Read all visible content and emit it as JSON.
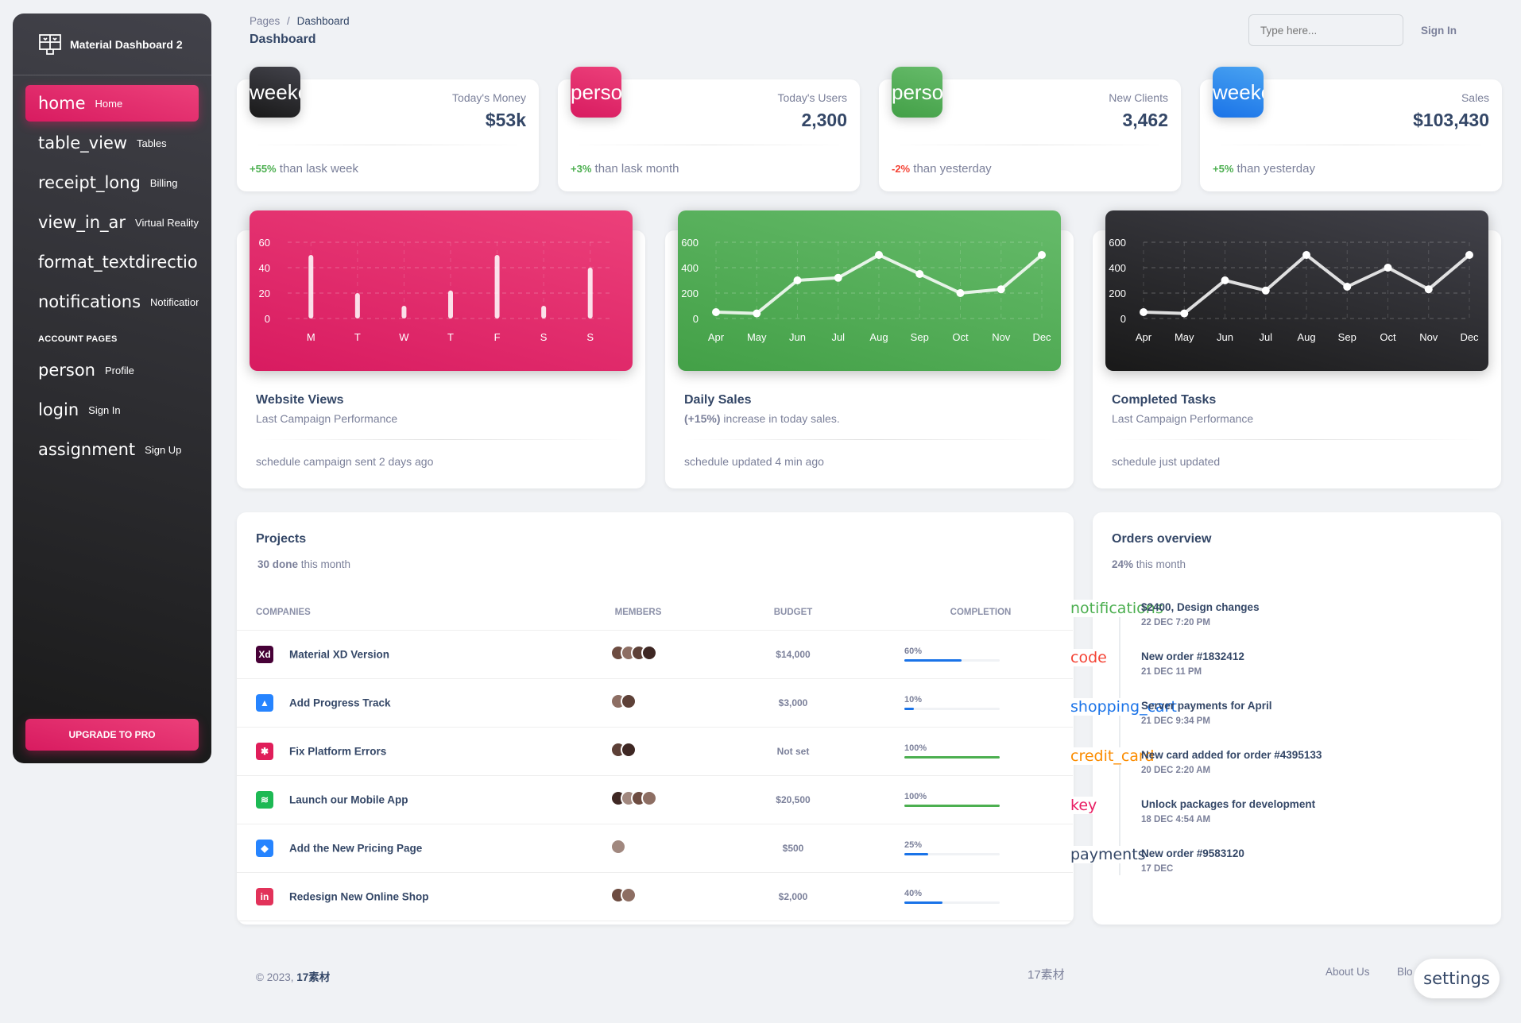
{
  "sidebar": {
    "brand": "Material Dashboard 2",
    "items": [
      {
        "icon": "home",
        "label": "Home"
      },
      {
        "icon": "table_view",
        "label": "Tables"
      },
      {
        "icon": "receipt_long",
        "label": "Billing"
      },
      {
        "icon": "view_in_ar",
        "label": "Virtual Reality"
      },
      {
        "icon": "format_textdirection_r_",
        "label": ""
      },
      {
        "icon": "notifications",
        "label": "Notifications"
      }
    ],
    "section": "ACCOUNT PAGES",
    "account_items": [
      {
        "icon": "person",
        "label": "Profile"
      },
      {
        "icon": "login",
        "label": "Sign In"
      },
      {
        "icon": "assignment",
        "label": "Sign Up"
      }
    ],
    "upgrade": "UPGRADE TO PRO"
  },
  "header": {
    "crumb_root": "Pages",
    "crumb_sep": "/",
    "crumb_current": "Dashboard",
    "title": "Dashboard",
    "search_placeholder": "Type here...",
    "signin": "Sign In"
  },
  "stats": [
    {
      "icon": "weekend",
      "label": "Today's Money",
      "value": "$53k",
      "change": "+55%",
      "change_text": " than lask week",
      "color": "#4caf50"
    },
    {
      "icon": "person",
      "label": "Today's Users",
      "value": "2,300",
      "change": "+3%",
      "change_text": " than lask month",
      "color": "#4caf50"
    },
    {
      "icon": "person",
      "label": "New Clients",
      "value": "3,462",
      "change": "-2%",
      "change_text": " than yesterday",
      "color": "#f44335"
    },
    {
      "icon": "weekend",
      "label": "Sales",
      "value": "$103,430",
      "change": "+5%",
      "change_text": " than yesterday",
      "color": "#4caf50"
    }
  ],
  "charts": [
    {
      "title": "Website Views",
      "subtitle": "Last Campaign Performance",
      "footer_icon": "schedule",
      "footer": " campaign sent 2 days ago",
      "chart_data": {
        "type": "bar",
        "categories": [
          "M",
          "T",
          "W",
          "T",
          "F",
          "S",
          "S"
        ],
        "values": [
          50,
          20,
          10,
          22,
          50,
          10,
          40
        ],
        "yticks": [
          0,
          20,
          40,
          60
        ],
        "ylim": [
          0,
          60
        ],
        "grid": true
      }
    },
    {
      "title": "Daily Sales",
      "subtitle_bold": "(+15%)",
      "subtitle": " increase in today sales.",
      "footer_icon": "schedule",
      "footer": " updated 4 min ago",
      "chart_data": {
        "type": "line",
        "categories": [
          "Apr",
          "May",
          "Jun",
          "Jul",
          "Aug",
          "Sep",
          "Oct",
          "Nov",
          "Dec"
        ],
        "values": [
          50,
          40,
          300,
          320,
          500,
          350,
          200,
          230,
          500
        ],
        "yticks": [
          0,
          200,
          400,
          600
        ],
        "ylim": [
          0,
          600
        ],
        "grid": true
      }
    },
    {
      "title": "Completed Tasks",
      "subtitle": "Last Campaign Performance",
      "footer_icon": "schedule",
      "footer": " just updated",
      "chart_data": {
        "type": "line",
        "categories": [
          "Apr",
          "May",
          "Jun",
          "Jul",
          "Aug",
          "Sep",
          "Oct",
          "Nov",
          "Dec"
        ],
        "values": [
          50,
          40,
          300,
          220,
          500,
          250,
          400,
          230,
          500
        ],
        "yticks": [
          0,
          200,
          400,
          600
        ],
        "ylim": [
          0,
          600
        ],
        "grid": true
      }
    }
  ],
  "projects": {
    "title": "Projects",
    "done_count": "30 done",
    "done_text": " this month",
    "columns": [
      "COMPANIES",
      "MEMBERS",
      "BUDGET",
      "COMPLETION"
    ],
    "rows": [
      {
        "name": "Material XD Version",
        "logo": "Xd",
        "logo_color": "#470137",
        "members": 4,
        "budget": "$14,000",
        "completion": "60%",
        "progress": 0.6,
        "bar_color": "#1a73e8"
      },
      {
        "name": "Add Progress Track",
        "logo": "▲",
        "logo_color": "#2684ff",
        "members": 2,
        "budget": "$3,000",
        "completion": "10%",
        "progress": 0.1,
        "bar_color": "#1a73e8"
      },
      {
        "name": "Fix Platform Errors",
        "logo": "✱",
        "logo_color": "#e01e5a",
        "members": 2,
        "budget": "Not set",
        "completion": "100%",
        "progress": 1.0,
        "bar_color": "#4caf50"
      },
      {
        "name": "Launch our Mobile App",
        "logo": "≋",
        "logo_color": "#1db954",
        "members": 4,
        "budget": "$20,500",
        "completion": "100%",
        "progress": 1.0,
        "bar_color": "#4caf50"
      },
      {
        "name": "Add the New Pricing Page",
        "logo": "◆",
        "logo_color": "#2684ff",
        "members": 1,
        "budget": "$500",
        "completion": "25%",
        "progress": 0.25,
        "bar_color": "#1a73e8"
      },
      {
        "name": "Redesign New Online Shop",
        "logo": "in",
        "logo_color": "#e2325a",
        "members": 2,
        "budget": "$2,000",
        "completion": "40%",
        "progress": 0.4,
        "bar_color": "#1a73e8"
      }
    ]
  },
  "orders": {
    "title": "Orders overview",
    "pct": "24%",
    "pct_text": " this month",
    "items": [
      {
        "icon": "notifications",
        "color": "#4caf50",
        "text": "$2400, Design changes",
        "date": "22 DEC 7:20 PM"
      },
      {
        "icon": "code",
        "color": "#f44335",
        "text": "New order #1832412",
        "date": "21 DEC 11 PM"
      },
      {
        "icon": "shopping_cart",
        "color": "#1a73e8",
        "text": "Server payments for April",
        "date": "21 DEC 9:34 PM"
      },
      {
        "icon": "credit_card",
        "color": "#fb8c00",
        "text": "New card added for order #4395133",
        "date": "20 DEC 2:20 AM"
      },
      {
        "icon": "key",
        "color": "#e91e63",
        "text": "Unlock packages for development",
        "date": "18 DEC 4:54 AM"
      },
      {
        "icon": "payments",
        "color": "#344767",
        "text": "New order #9583120",
        "date": "17 DEC"
      }
    ]
  },
  "footer": {
    "copyright": "© 2023, ",
    "brand": "17素材",
    "center": "17素材",
    "about": "About Us",
    "blog": "Blo"
  },
  "settings_fab": "settings"
}
